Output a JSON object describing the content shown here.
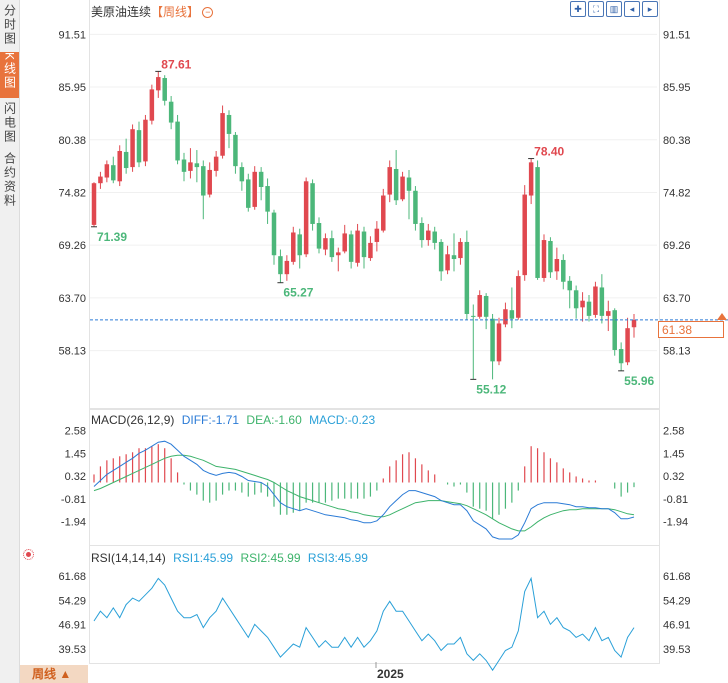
{
  "sidebar": {
    "tabs": [
      {
        "label": "分时图"
      },
      {
        "label": "K线图"
      },
      {
        "label": "闪电图"
      },
      {
        "label": "合约资料"
      }
    ]
  },
  "header": {
    "symbol": "美原油连续",
    "period_tag": "【周线】",
    "toolbar_icons": [
      "crosshair-icon",
      "expand-icon",
      "indicator-icon",
      "prev-icon",
      "next-icon"
    ]
  },
  "colors": {
    "up": "#e0484f",
    "down": "#4cb77a",
    "diff": "#2b7bd6",
    "dea": "#3db36b",
    "rsi": "#2aa0d8",
    "accent": "#e8733c"
  },
  "chart_data": [
    {
      "type": "candlestick",
      "title": "美原油连续【周线】",
      "ylim": [
        52.5,
        94.5
      ],
      "yticks": [
        "91.51",
        "85.95",
        "80.38",
        "74.82",
        "69.26",
        "63.70",
        "58.13"
      ],
      "last_price": "61.38",
      "annotations": [
        {
          "label": "87.61",
          "kind": "high"
        },
        {
          "label": "71.39",
          "kind": "low"
        },
        {
          "label": "65.27",
          "kind": "low"
        },
        {
          "label": "78.40",
          "kind": "high"
        },
        {
          "label": "55.12",
          "kind": "low"
        },
        {
          "label": "55.96",
          "kind": "low"
        }
      ],
      "x_label": "2025",
      "candles": [
        [
          71.4,
          75.8,
          71.2,
          75.9
        ],
        [
          75.8,
          76.5,
          75.2,
          77.0
        ],
        [
          76.4,
          77.8,
          75.9,
          78.2
        ],
        [
          77.7,
          76.1,
          75.8,
          78.6
        ],
        [
          76.0,
          79.2,
          75.5,
          79.8
        ],
        [
          79.1,
          77.4,
          76.8,
          80.5
        ],
        [
          77.5,
          81.5,
          77.0,
          82.0
        ],
        [
          81.4,
          78.0,
          77.5,
          82.3
        ],
        [
          78.1,
          82.5,
          77.6,
          83.0
        ],
        [
          82.4,
          85.7,
          82.0,
          86.2
        ],
        [
          85.6,
          87.0,
          84.8,
          87.6
        ],
        [
          86.9,
          84.5,
          84.0,
          87.2
        ],
        [
          84.4,
          82.2,
          81.5,
          85.0
        ],
        [
          82.3,
          78.2,
          77.8,
          83.0
        ],
        [
          78.3,
          77.0,
          76.0,
          79.0
        ],
        [
          77.1,
          78.0,
          76.3,
          79.5
        ],
        [
          77.9,
          77.5,
          75.9,
          79.3
        ],
        [
          77.6,
          74.5,
          72.0,
          78.2
        ],
        [
          74.6,
          77.2,
          74.3,
          78.0
        ],
        [
          77.1,
          78.6,
          76.5,
          79.2
        ],
        [
          78.7,
          83.2,
          78.4,
          84.0
        ],
        [
          83.0,
          81.0,
          79.5,
          83.5
        ],
        [
          80.9,
          77.6,
          76.8,
          81.2
        ],
        [
          77.5,
          76.0,
          75.0,
          78.0
        ],
        [
          76.2,
          73.2,
          72.8,
          76.8
        ],
        [
          73.3,
          77.0,
          73.0,
          77.6
        ],
        [
          77.0,
          75.4,
          74.0,
          77.5
        ],
        [
          75.5,
          72.8,
          71.5,
          76.3
        ],
        [
          72.7,
          68.2,
          67.2,
          73.0
        ],
        [
          68.1,
          66.2,
          65.3,
          68.8
        ],
        [
          66.2,
          67.6,
          65.5,
          68.2
        ],
        [
          67.5,
          70.6,
          67.2,
          71.2
        ],
        [
          70.4,
          68.2,
          66.8,
          71.0
        ],
        [
          68.3,
          76.0,
          68.0,
          76.4
        ],
        [
          75.8,
          71.5,
          70.8,
          76.2
        ],
        [
          71.6,
          68.9,
          68.4,
          72.2
        ],
        [
          68.8,
          70.0,
          68.2,
          70.5
        ],
        [
          70.0,
          68.0,
          67.5,
          70.8
        ],
        [
          68.2,
          68.5,
          66.5,
          69.0
        ],
        [
          68.6,
          70.5,
          68.4,
          71.4
        ],
        [
          70.4,
          67.5,
          66.8,
          70.8
        ],
        [
          67.4,
          70.8,
          67.0,
          71.5
        ],
        [
          70.7,
          68.0,
          66.8,
          71.2
        ],
        [
          67.9,
          69.5,
          67.6,
          70.2
        ],
        [
          69.6,
          71.0,
          68.6,
          71.8
        ],
        [
          70.8,
          74.5,
          70.6,
          75.2
        ],
        [
          74.6,
          77.5,
          73.8,
          78.2
        ],
        [
          77.3,
          74.0,
          73.5,
          79.3
        ],
        [
          74.1,
          76.5,
          73.9,
          77.0
        ],
        [
          76.4,
          75.0,
          72.0,
          77.2
        ],
        [
          75.0,
          71.5,
          70.8,
          75.5
        ],
        [
          71.6,
          69.8,
          69.0,
          72.2
        ],
        [
          69.8,
          70.8,
          69.2,
          71.5
        ],
        [
          70.7,
          69.5,
          68.8,
          71.2
        ],
        [
          69.6,
          66.5,
          65.5,
          69.9
        ],
        [
          66.6,
          68.3,
          66.2,
          69.2
        ],
        [
          68.2,
          67.8,
          66.5,
          70.5
        ],
        [
          67.9,
          69.6,
          67.2,
          70.0
        ],
        [
          69.6,
          62.0,
          61.4,
          70.8
        ],
        [
          61.8,
          61.7,
          55.1,
          63.0
        ],
        [
          61.7,
          64.0,
          61.5,
          64.5
        ],
        [
          63.9,
          61.7,
          60.4,
          64.2
        ],
        [
          61.5,
          57.0,
          55.1,
          62.0
        ],
        [
          57.0,
          61.0,
          56.6,
          61.6
        ],
        [
          60.9,
          62.5,
          60.6,
          63.2
        ],
        [
          62.4,
          61.5,
          60.5,
          64.8
        ],
        [
          61.6,
          66.0,
          61.4,
          66.6
        ],
        [
          66.1,
          74.6,
          65.5,
          75.6
        ],
        [
          74.5,
          78.0,
          73.6,
          78.4
        ],
        [
          77.5,
          65.8,
          65.6,
          78.2
        ],
        [
          65.8,
          69.8,
          65.4,
          70.4
        ],
        [
          69.7,
          66.4,
          65.8,
          70.1
        ],
        [
          66.5,
          67.8,
          65.6,
          69.0
        ],
        [
          67.7,
          65.4,
          64.6,
          68.3
        ],
        [
          65.5,
          64.5,
          62.6,
          66.0
        ],
        [
          64.5,
          62.6,
          61.5,
          65.0
        ],
        [
          62.7,
          63.4,
          61.2,
          64.3
        ],
        [
          63.3,
          61.8,
          61.2,
          64.0
        ],
        [
          61.9,
          64.9,
          61.6,
          65.4
        ],
        [
          64.8,
          61.8,
          61.0,
          66.2
        ],
        [
          61.8,
          62.3,
          60.2,
          63.4
        ],
        [
          62.4,
          58.2,
          57.6,
          62.6
        ],
        [
          58.3,
          56.8,
          56.0,
          59.0
        ],
        [
          56.9,
          60.5,
          56.6,
          61.6
        ],
        [
          60.6,
          61.38,
          59.5,
          62.0
        ]
      ]
    },
    {
      "type": "macd",
      "title": "MACD(26,12,9)",
      "readout": {
        "diff": "DIFF:-1.71",
        "dea": "DEA:-1.60",
        "macd": "MACD:-0.23"
      },
      "ylim": [
        -3.1,
        3.1
      ],
      "yticks": [
        "2.58",
        "1.45",
        "0.32",
        "-0.81",
        "-1.94"
      ],
      "diff": [
        -0.2,
        0.1,
        0.4,
        0.6,
        0.8,
        1.0,
        1.2,
        1.45,
        1.6,
        1.8,
        2.0,
        2.05,
        1.9,
        1.6,
        1.3,
        1.1,
        0.9,
        0.6,
        0.45,
        0.35,
        0.45,
        0.5,
        0.45,
        0.3,
        0.1,
        0.05,
        0.0,
        -0.2,
        -0.6,
        -1.0,
        -1.2,
        -1.3,
        -1.4,
        -1.3,
        -1.4,
        -1.5,
        -1.6,
        -1.65,
        -1.7,
        -1.75,
        -1.85,
        -1.9,
        -2.0,
        -2.0,
        -1.9,
        -1.6,
        -1.2,
        -0.9,
        -0.6,
        -0.4,
        -0.4,
        -0.5,
        -0.6,
        -0.7,
        -0.9,
        -1.0,
        -1.1,
        -1.1,
        -1.4,
        -1.9,
        -2.1,
        -2.3,
        -2.7,
        -2.8,
        -2.8,
        -2.8,
        -2.6,
        -2.0,
        -1.3,
        -1.1,
        -1.0,
        -1.0,
        -1.0,
        -1.05,
        -1.1,
        -1.2,
        -1.2,
        -1.25,
        -1.25,
        -1.3,
        -1.3,
        -1.5,
        -1.8,
        -1.8,
        -1.71
      ],
      "dea": [
        -0.4,
        -0.3,
        -0.15,
        0.0,
        0.15,
        0.3,
        0.45,
        0.6,
        0.75,
        0.9,
        1.05,
        1.2,
        1.3,
        1.35,
        1.35,
        1.3,
        1.2,
        1.1,
        0.95,
        0.8,
        0.75,
        0.7,
        0.65,
        0.55,
        0.45,
        0.35,
        0.25,
        0.15,
        0.0,
        -0.2,
        -0.4,
        -0.55,
        -0.7,
        -0.8,
        -0.9,
        -1.0,
        -1.1,
        -1.2,
        -1.3,
        -1.35,
        -1.45,
        -1.5,
        -1.6,
        -1.65,
        -1.7,
        -1.7,
        -1.6,
        -1.45,
        -1.3,
        -1.15,
        -1.0,
        -0.95,
        -0.9,
        -0.9,
        -0.9,
        -0.95,
        -1.0,
        -1.05,
        -1.15,
        -1.3,
        -1.45,
        -1.6,
        -1.8,
        -2.0,
        -2.15,
        -2.3,
        -2.4,
        -2.4,
        -2.2,
        -1.95,
        -1.75,
        -1.6,
        -1.5,
        -1.4,
        -1.35,
        -1.35,
        -1.3,
        -1.3,
        -1.3,
        -1.3,
        -1.3,
        -1.35,
        -1.45,
        -1.55,
        -1.6
      ],
      "macd": [
        0.4,
        0.8,
        1.1,
        1.2,
        1.3,
        1.4,
        1.5,
        1.7,
        1.7,
        1.8,
        1.9,
        1.7,
        1.2,
        0.5,
        -0.1,
        -0.4,
        -0.6,
        -0.9,
        -1.0,
        -0.9,
        -0.6,
        -0.4,
        -0.4,
        -0.5,
        -0.7,
        -0.6,
        -0.5,
        -0.7,
        -1.2,
        -1.6,
        -1.6,
        -1.5,
        -1.4,
        -1.0,
        -1.0,
        -1.0,
        -1.0,
        -0.9,
        -0.8,
        -0.8,
        -0.8,
        -0.8,
        -0.8,
        -0.7,
        -0.4,
        0.2,
        0.8,
        1.1,
        1.4,
        1.5,
        1.2,
        0.9,
        0.6,
        0.4,
        0.0,
        -0.1,
        -0.2,
        -0.1,
        -0.5,
        -1.2,
        -1.3,
        -1.4,
        -1.8,
        -1.6,
        -1.3,
        -1.0,
        -0.4,
        0.8,
        1.8,
        1.7,
        1.5,
        1.2,
        1.0,
        0.7,
        0.5,
        0.3,
        0.2,
        0.1,
        0.1,
        0.0,
        0.0,
        -0.3,
        -0.7,
        -0.5,
        -0.23
      ]
    },
    {
      "type": "rsi",
      "title": "RSI(14,14,14)",
      "readout": {
        "rsi1": "RSI1:45.99",
        "rsi2": "RSI2:45.99",
        "rsi3": "RSI3:45.99"
      },
      "ylim": [
        35.5,
        66.0
      ],
      "yticks": [
        "61.68",
        "54.29",
        "46.91",
        "39.53"
      ],
      "values": [
        48,
        51,
        49,
        52,
        49,
        53,
        55,
        54,
        56,
        58,
        61,
        59,
        55,
        51,
        49,
        49,
        50,
        46,
        49,
        51,
        55,
        52,
        49,
        46,
        43,
        47,
        45,
        43,
        40,
        37,
        39,
        41,
        40,
        46,
        43,
        40,
        42,
        40,
        40,
        43,
        40,
        43,
        40,
        42,
        45,
        51,
        54,
        51,
        51,
        48,
        45,
        42,
        44,
        42,
        39,
        41,
        41,
        43,
        38,
        36,
        38,
        36,
        33,
        36,
        39,
        40,
        45,
        57,
        61,
        49,
        51,
        47,
        49,
        46,
        45,
        43,
        44,
        42,
        46,
        42,
        43,
        39,
        37,
        43,
        45.99
      ]
    }
  ]
}
